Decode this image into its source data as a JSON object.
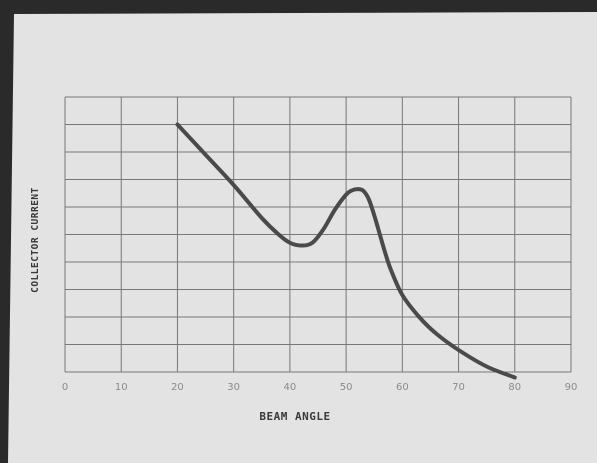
{
  "chart_data": {
    "type": "line",
    "title": "",
    "xlabel": "BEAM ANGLE",
    "ylabel": "COLLECTOR CURRENT",
    "xlim": [
      0,
      90
    ],
    "ylim": [
      0,
      10
    ],
    "x_ticks": [
      "0",
      "10",
      "20",
      "30",
      "40",
      "50",
      "60",
      "70",
      "80",
      "90"
    ],
    "grid": true,
    "legend": "none",
    "series": [
      {
        "x": [
          20,
          25,
          30,
          35,
          38,
          40,
          42,
          44,
          46,
          48,
          50,
          51,
          52,
          53,
          54,
          55,
          56,
          57,
          58,
          60,
          63,
          66,
          70,
          75,
          80
        ],
        "y": [
          9.0,
          7.9,
          6.8,
          5.6,
          5.0,
          4.7,
          4.6,
          4.7,
          5.2,
          5.9,
          6.45,
          6.6,
          6.65,
          6.6,
          6.3,
          5.7,
          5.0,
          4.3,
          3.7,
          2.8,
          2.0,
          1.4,
          0.8,
          0.2,
          -0.2
        ]
      }
    ]
  },
  "colors": {
    "paper": "#e4e4e4",
    "grid": "#777777",
    "curve": "#4a4a4a",
    "text": "#3a3a3a"
  }
}
